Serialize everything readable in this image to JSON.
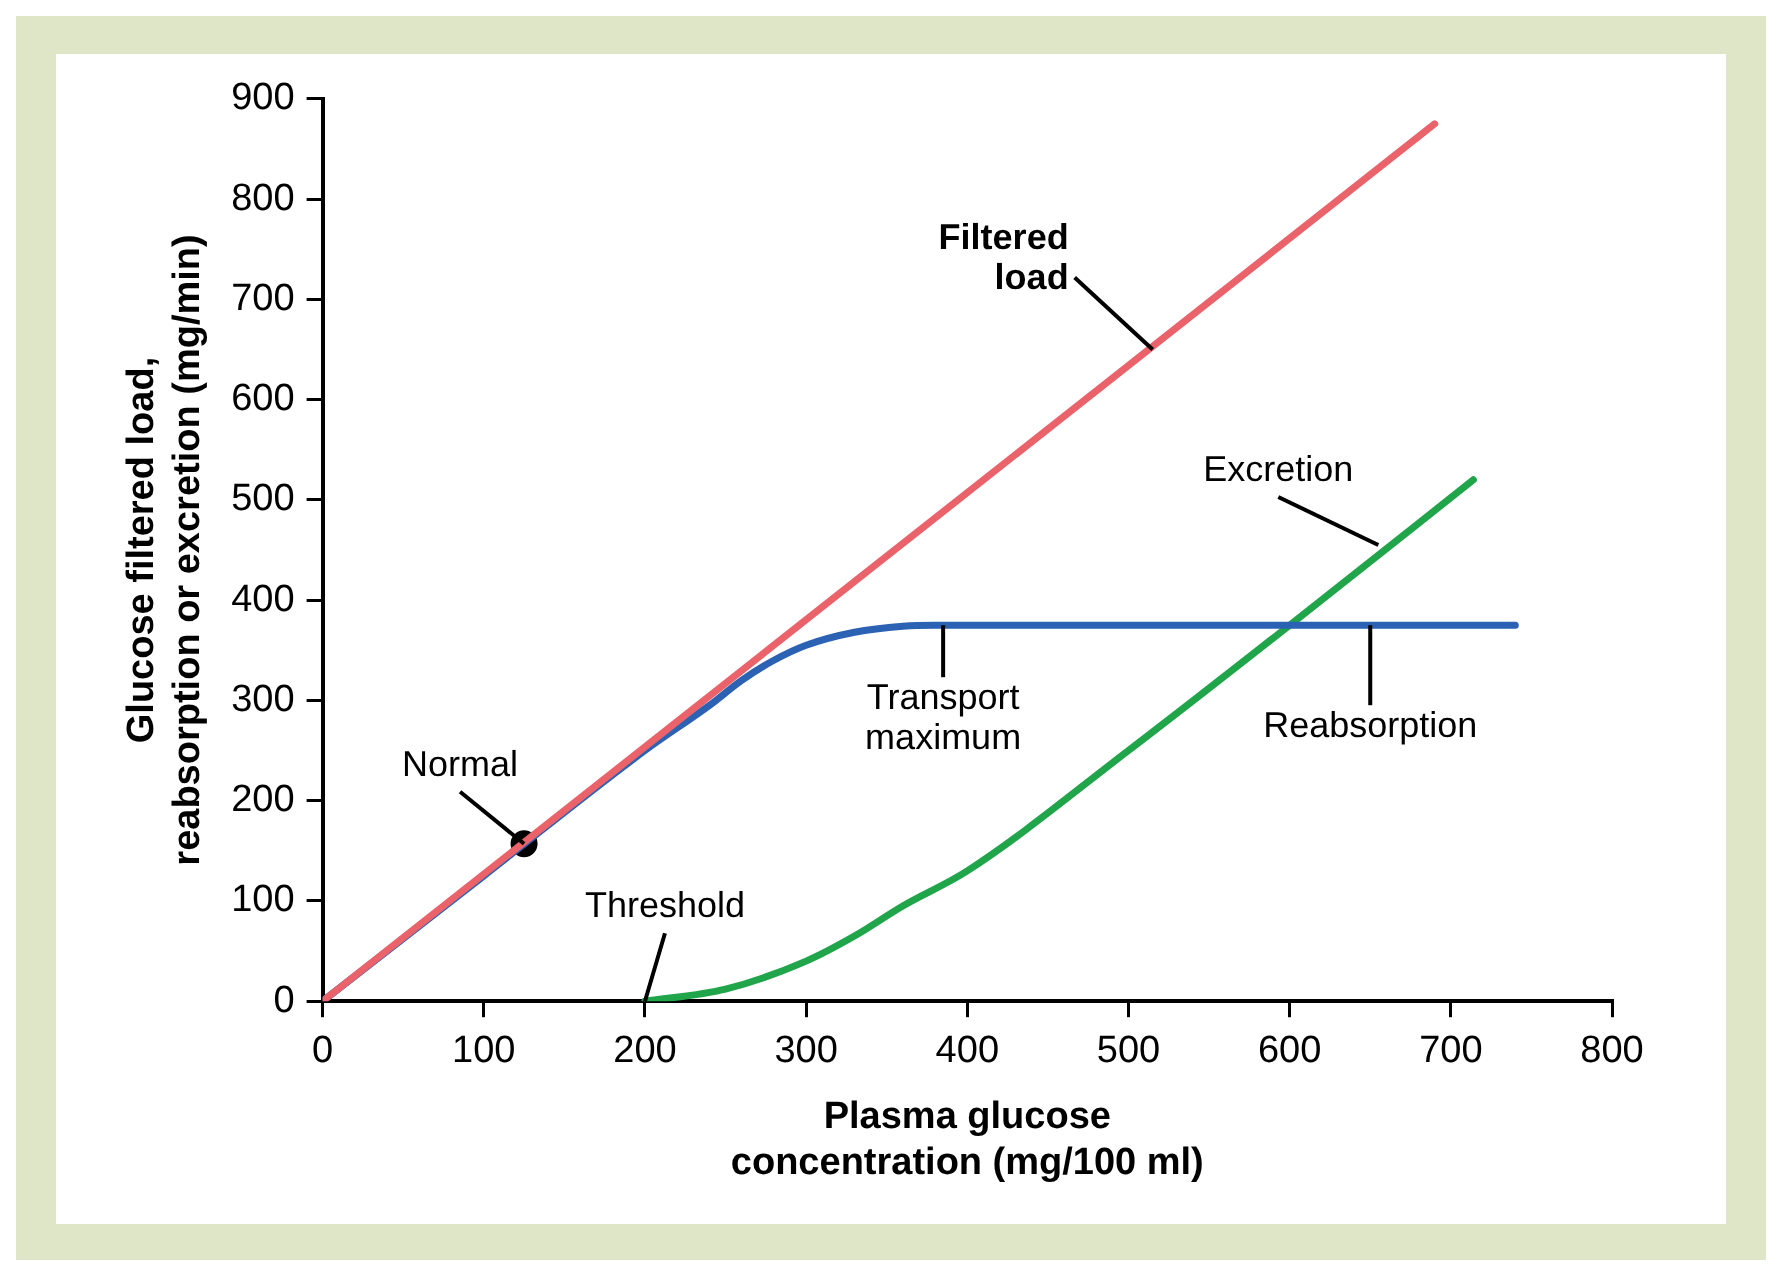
{
  "chart_data": {
    "type": "line",
    "xlabel": "Plasma glucose concentration (mg/100 ml)",
    "ylabel": "Glucose filtered load, reabsorption or excretion (mg/min)",
    "xlim": [
      0,
      800
    ],
    "xticks": [
      0,
      100,
      200,
      300,
      400,
      500,
      600,
      700,
      800
    ],
    "ylim": [
      0,
      900
    ],
    "yticks": [
      0,
      100,
      200,
      300,
      400,
      500,
      600,
      700,
      800,
      900
    ],
    "grid": false,
    "legend": false,
    "marker": "none",
    "line_style": "solid",
    "series": [
      {
        "color": "#ea636b",
        "x": [
          0,
          690
        ],
        "values": [
          0,
          875
        ]
      },
      {
        "color": "#2b62b3",
        "x": [
          0,
          100,
          200,
          240,
          260,
          280,
          300,
          330,
          360,
          380,
          740
        ],
        "values": [
          0,
          125,
          250,
          295,
          320,
          340,
          355,
          368,
          374,
          375,
          375
        ]
      },
      {
        "color": "#20a54b",
        "x": [
          200,
          250,
          300,
          330,
          360,
          400,
          500,
          600,
          714
        ],
        "values": [
          0,
          12,
          40,
          65,
          95,
          130,
          250,
          375,
          520
        ]
      },
      {
        "type": "scatter",
        "marker": "circle",
        "color": "#000000",
        "x": [
          125
        ],
        "values": [
          157
        ]
      }
    ],
    "annotations": [
      {
        "text": "Filtered load",
        "x": 515,
        "y": 650
      },
      {
        "text": "Excretion",
        "x": 655,
        "y": 455
      },
      {
        "text": "Transport maximum",
        "x": 385,
        "y": 375
      },
      {
        "text": "Reabsorption",
        "x": 650,
        "y": 375
      },
      {
        "text": "Threshold",
        "x": 200,
        "y": 0
      },
      {
        "text": "Normal",
        "x": 125,
        "y": 157
      }
    ]
  }
}
